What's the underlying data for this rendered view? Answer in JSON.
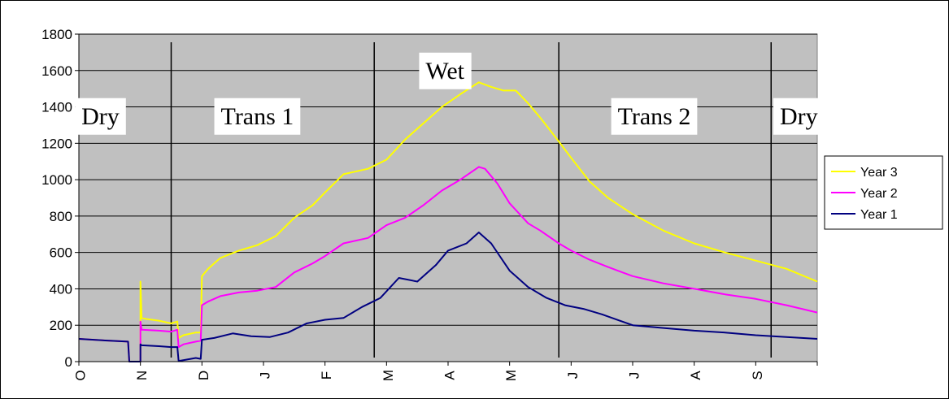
{
  "chart_data": {
    "type": "line",
    "title": "",
    "xlabel": "",
    "ylabel": "",
    "ylim": [
      0,
      1800
    ],
    "y_ticks": [
      "0",
      "200",
      "400",
      "600",
      "800",
      "1000",
      "1200",
      "1400",
      "1600",
      "1800"
    ],
    "x_ticks": [
      "O",
      "N",
      "D",
      "J",
      "F",
      "M",
      "A",
      "M",
      "J",
      "J",
      "A",
      "S"
    ],
    "grid": true,
    "legend_position": "right",
    "colors": {
      "plot_bg": "#c0c0c0",
      "year3": "#ffff00",
      "year2": "#ff00ff",
      "year1": "#000080"
    },
    "regions": [
      {
        "label": "Dry",
        "month": 0.35,
        "y": 1350
      },
      {
        "label": "Trans 1",
        "month": 2.9,
        "y": 1350
      },
      {
        "label": "Wet",
        "month": 5.95,
        "y": 1600
      },
      {
        "label": "Trans 2",
        "month": 9.35,
        "y": 1350
      },
      {
        "label": "Dry",
        "month": 11.7,
        "y": 1350
      }
    ],
    "season_boundaries_month": [
      1.5,
      4.8,
      7.8,
      11.25
    ],
    "legend": [
      "Year 3",
      "Year 2",
      "Year 1"
    ],
    "series": [
      {
        "name": "Year 3",
        "month": [
          0,
          0.5,
          0.8,
          0.82,
          1.0,
          1.0,
          1.02,
          1.08,
          1.3,
          1.5,
          1.6,
          1.62,
          1.7,
          1.9,
          1.98,
          2.0,
          2.1,
          2.3,
          2.6,
          2.9,
          3.2,
          3.5,
          3.8,
          4.0,
          4.3,
          4.7,
          5.0,
          5.3,
          5.6,
          5.9,
          6.2,
          6.5,
          6.7,
          6.9,
          7.1,
          7.3,
          7.5,
          7.8,
          8.0,
          8.3,
          8.6,
          9.0,
          9.5,
          10.0,
          10.5,
          11.0,
          11.5,
          12.0
        ],
        "values": [
          125,
          115,
          110,
          0,
          0,
          440,
          240,
          235,
          225,
          210,
          220,
          130,
          145,
          160,
          160,
          470,
          510,
          570,
          610,
          640,
          690,
          790,
          860,
          930,
          1030,
          1060,
          1110,
          1220,
          1310,
          1400,
          1470,
          1535,
          1510,
          1490,
          1490,
          1420,
          1340,
          1210,
          1120,
          990,
          900,
          810,
          720,
          650,
          600,
          555,
          510,
          440
        ]
      },
      {
        "name": "Year 2",
        "month": [
          0,
          0.5,
          0.8,
          0.82,
          1.0,
          1.0,
          1.02,
          1.3,
          1.5,
          1.6,
          1.62,
          1.7,
          1.9,
          1.98,
          2.0,
          2.1,
          2.3,
          2.6,
          2.9,
          3.2,
          3.5,
          3.8,
          4.0,
          4.3,
          4.7,
          5.0,
          5.3,
          5.6,
          5.9,
          6.2,
          6.5,
          6.6,
          6.8,
          7.0,
          7.3,
          7.5,
          7.8,
          8.0,
          8.3,
          8.6,
          9.0,
          9.5,
          10.0,
          10.5,
          11.0,
          11.5,
          12.0
        ],
        "values": [
          125,
          115,
          110,
          0,
          0,
          220,
          175,
          170,
          165,
          175,
          80,
          95,
          110,
          115,
          310,
          330,
          360,
          380,
          390,
          410,
          490,
          540,
          580,
          650,
          680,
          750,
          790,
          860,
          940,
          1000,
          1070,
          1060,
          980,
          870,
          760,
          720,
          650,
          610,
          560,
          520,
          470,
          430,
          400,
          370,
          345,
          310,
          270
        ]
      },
      {
        "name": "Year 1",
        "month": [
          0,
          0.5,
          0.8,
          0.82,
          1.0,
          1.0,
          1.02,
          1.3,
          1.5,
          1.6,
          1.62,
          1.65,
          1.9,
          1.98,
          2.0,
          2.2,
          2.5,
          2.8,
          3.1,
          3.4,
          3.7,
          4.0,
          4.3,
          4.6,
          4.9,
          5.2,
          5.5,
          5.8,
          6.0,
          6.3,
          6.5,
          6.7,
          7.0,
          7.3,
          7.6,
          7.9,
          8.2,
          8.5,
          9.0,
          9.5,
          10.0,
          10.5,
          11.0,
          11.5,
          12.0
        ],
        "values": [
          125,
          115,
          110,
          0,
          0,
          95,
          90,
          85,
          80,
          80,
          5,
          5,
          20,
          15,
          120,
          130,
          155,
          140,
          135,
          160,
          210,
          230,
          240,
          300,
          350,
          460,
          440,
          530,
          610,
          650,
          710,
          650,
          500,
          410,
          350,
          310,
          290,
          260,
          200,
          185,
          170,
          160,
          145,
          135,
          125
        ]
      }
    ]
  }
}
